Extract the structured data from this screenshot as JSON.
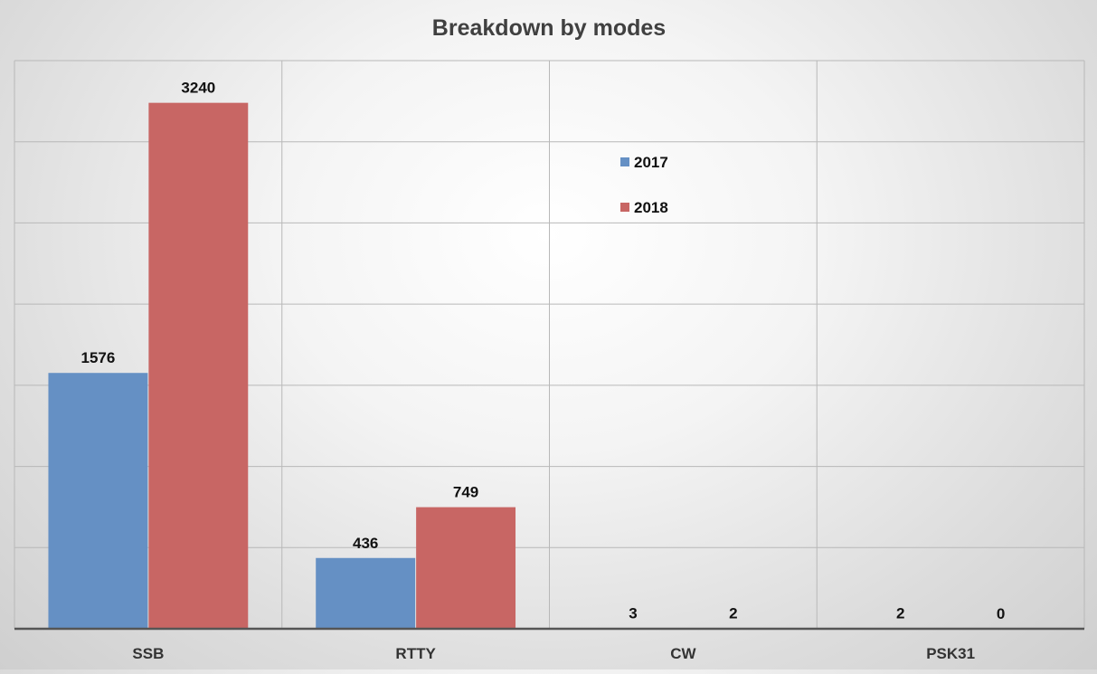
{
  "chart_data": {
    "type": "bar",
    "title": "Breakdown by modes",
    "categories": [
      "SSB",
      "RTTY",
      "CW",
      "PSK31"
    ],
    "series": [
      {
        "name": "2017",
        "values": [
          1576,
          436,
          3,
          2
        ],
        "color": "#6590C4"
      },
      {
        "name": "2018",
        "values": [
          3240,
          749,
          2,
          0
        ],
        "color": "#C86664"
      }
    ],
    "xlabel": "",
    "ylabel": "",
    "ylim": [
      0,
      3500
    ],
    "y_gridline_step": 500,
    "y_tick_labels_shown": false,
    "grid": true,
    "legend_position": "top-center",
    "data_labels": true
  }
}
